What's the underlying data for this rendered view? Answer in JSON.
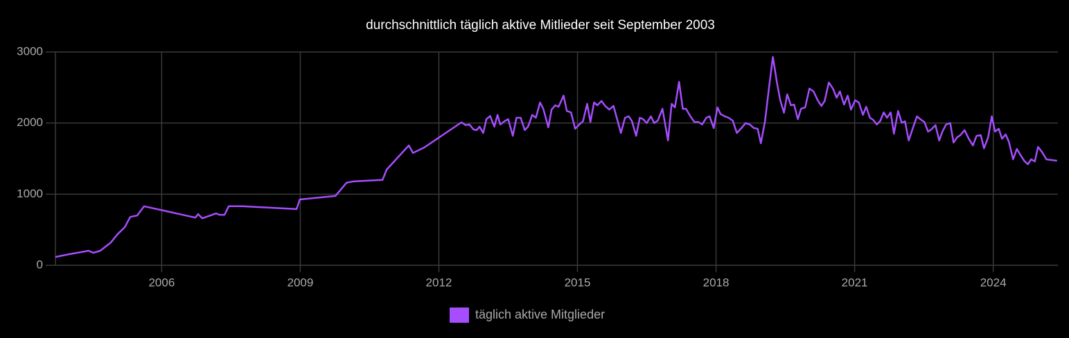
{
  "chart_data": {
    "type": "line",
    "title": "durchschnittlich täglich aktive Mitlieder seit September 2003",
    "x": [
      2003.7,
      2004.0,
      2004.42,
      2004.52,
      2004.67,
      2004.9,
      2005.05,
      2005.2,
      2005.32,
      2005.47,
      2005.62,
      2006.73,
      2006.79,
      2006.88,
      2007.18,
      2007.25,
      2007.36,
      2007.45,
      2007.75,
      2008.92,
      2008.99,
      2009.76,
      2010.0,
      2010.15,
      2010.78,
      2010.87,
      2011.35,
      2011.44,
      2011.68,
      2012.49,
      2012.58,
      2012.66,
      2012.75,
      2012.82,
      2012.88,
      2012.96,
      2013.03,
      2013.11,
      2013.2,
      2013.27,
      2013.33,
      2013.42,
      2013.5,
      2013.6,
      2013.68,
      2013.77,
      2013.86,
      2013.93,
      2014.02,
      2014.1,
      2014.19,
      2014.26,
      2014.37,
      2014.44,
      2014.52,
      2014.59,
      2014.7,
      2014.77,
      2014.86,
      2014.95,
      2015.04,
      2015.12,
      2015.21,
      2015.28,
      2015.36,
      2015.43,
      2015.52,
      2015.6,
      2015.69,
      2015.78,
      2015.85,
      2015.94,
      2016.03,
      2016.11,
      2016.18,
      2016.27,
      2016.35,
      2016.42,
      2016.5,
      2016.59,
      2016.66,
      2016.74,
      2016.84,
      2016.96,
      2017.04,
      2017.11,
      2017.2,
      2017.28,
      2017.35,
      2017.44,
      2017.53,
      2017.62,
      2017.7,
      2017.79,
      2017.86,
      2017.95,
      2018.03,
      2018.1,
      2018.19,
      2018.27,
      2018.36,
      2018.45,
      2018.55,
      2018.64,
      2018.73,
      2018.82,
      2018.9,
      2018.97,
      2019.06,
      2019.15,
      2019.23,
      2019.32,
      2019.39,
      2019.47,
      2019.54,
      2019.62,
      2019.69,
      2019.77,
      2019.84,
      2019.93,
      2020.02,
      2020.11,
      2020.2,
      2020.28,
      2020.35,
      2020.44,
      2020.53,
      2020.61,
      2020.68,
      2020.77,
      2020.85,
      2020.92,
      2021.01,
      2021.09,
      2021.18,
      2021.25,
      2021.33,
      2021.4,
      2021.48,
      2021.55,
      2021.63,
      2021.7,
      2021.78,
      2021.85,
      2021.94,
      2022.02,
      2022.09,
      2022.17,
      2022.26,
      2022.35,
      2022.42,
      2022.51,
      2022.59,
      2022.66,
      2022.75,
      2022.83,
      2022.9,
      2022.98,
      2023.07,
      2023.14,
      2023.22,
      2023.29,
      2023.38,
      2023.47,
      2023.56,
      2023.64,
      2023.73,
      2023.8,
      2023.89,
      2023.97,
      2024.04,
      2024.12,
      2024.19,
      2024.27,
      2024.34,
      2024.43,
      2024.51,
      2024.6,
      2024.67,
      2024.75,
      2024.82,
      2024.9,
      2024.97,
      2025.06,
      2025.15,
      2025.38
    ],
    "series": [
      {
        "name": "täglich aktive Mitglieder",
        "color": "#a64dff",
        "values": [
          117,
          156,
          205,
          175,
          205,
          320,
          440,
          535,
          680,
          700,
          830,
          670,
          720,
          660,
          730,
          710,
          710,
          830,
          830,
          790,
          925,
          975,
          1160,
          1180,
          1200,
          1345,
          1685,
          1580,
          1655,
          2010,
          1970,
          1980,
          1910,
          1900,
          1950,
          1860,
          2055,
          2100,
          1950,
          2115,
          1980,
          2025,
          2055,
          1820,
          2075,
          2075,
          1900,
          1950,
          2115,
          2075,
          2290,
          2200,
          1940,
          2190,
          2250,
          2230,
          2385,
          2170,
          2150,
          1920,
          1980,
          2025,
          2270,
          2015,
          2290,
          2250,
          2310,
          2240,
          2190,
          2240,
          2075,
          1860,
          2075,
          2095,
          2025,
          1820,
          2075,
          2055,
          2000,
          2095,
          2000,
          2035,
          2200,
          1755,
          2270,
          2220,
          2580,
          2200,
          2200,
          2100,
          2015,
          2015,
          1980,
          2075,
          2095,
          1930,
          2220,
          2125,
          2095,
          2075,
          2035,
          1860,
          1930,
          2000,
          1980,
          1930,
          1920,
          1715,
          2025,
          2515,
          2930,
          2560,
          2320,
          2145,
          2405,
          2250,
          2260,
          2055,
          2200,
          2220,
          2485,
          2445,
          2320,
          2240,
          2310,
          2570,
          2485,
          2355,
          2445,
          2260,
          2385,
          2190,
          2320,
          2290,
          2115,
          2230,
          2075,
          2045,
          1980,
          2025,
          2150,
          2075,
          2150,
          1850,
          2170,
          2005,
          2025,
          1755,
          1930,
          2095,
          2055,
          2015,
          1880,
          1910,
          1970,
          1755,
          1880,
          1980,
          2000,
          1725,
          1800,
          1830,
          1900,
          1780,
          1685,
          1820,
          1830,
          1645,
          1800,
          2095,
          1880,
          1920,
          1780,
          1840,
          1735,
          1490,
          1635,
          1540,
          1470,
          1420,
          1490,
          1460,
          1665,
          1590,
          1490,
          1470
        ]
      }
    ],
    "xlim": [
      2003.7,
      2025.4
    ],
    "xticks": [
      2006,
      2009,
      2012,
      2015,
      2018,
      2021,
      2024
    ],
    "ylim": [
      0,
      3000
    ],
    "yticks": [
      0,
      1000,
      2000,
      3000
    ],
    "grid": true,
    "legend": "bottom"
  }
}
